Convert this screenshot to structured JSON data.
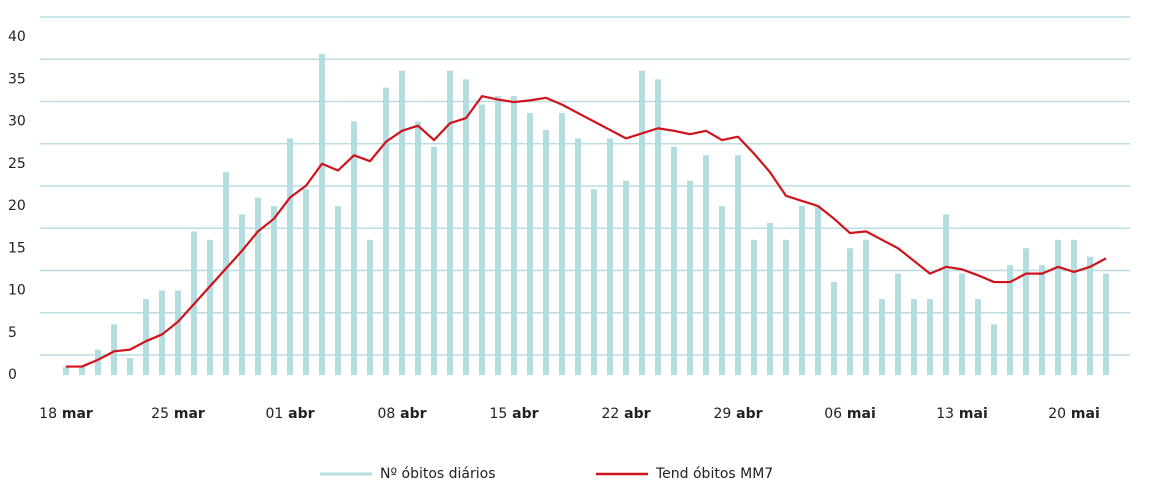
{
  "chart_data": {
    "type": "bar_line",
    "categories": [
      "18 mar",
      null,
      null,
      null,
      null,
      null,
      null,
      "25 mar",
      null,
      null,
      null,
      null,
      null,
      null,
      "01 abr",
      null,
      null,
      null,
      null,
      null,
      null,
      "08 abr",
      null,
      null,
      null,
      null,
      null,
      null,
      "15 abr",
      null,
      null,
      null,
      null,
      null,
      null,
      "22 abr",
      null,
      null,
      null,
      null,
      null,
      null,
      "29 abr",
      null,
      null,
      null,
      null,
      null,
      null,
      "06 mai",
      null,
      null,
      null,
      null,
      null,
      null,
      "13 mai",
      null,
      null,
      null,
      null,
      null,
      null,
      "20 mai",
      null,
      null
    ],
    "series": [
      {
        "name": "Nº óbitos diários",
        "color": "#b3dde0",
        "kind": "bar",
        "values": [
          1,
          1,
          3,
          6,
          2,
          9,
          10,
          10,
          17,
          16,
          24,
          19,
          21,
          20,
          28,
          22,
          38,
          20,
          30,
          16,
          34,
          36,
          30,
          27,
          36,
          35,
          32,
          33,
          33,
          31,
          29,
          31,
          28,
          22,
          28,
          23,
          36,
          35,
          27,
          23,
          26,
          20,
          26,
          16,
          18,
          16,
          20,
          20,
          11,
          15,
          16,
          9,
          12,
          9,
          9,
          19,
          12,
          9,
          6,
          13,
          15,
          13,
          16,
          16,
          14,
          12
        ]
      },
      {
        "name": "Tend óbitos MM7",
        "color": "#d0121b",
        "kind": "line",
        "values": [
          1,
          1,
          1.8,
          2.8,
          3,
          4,
          4.8,
          6.3,
          8.4,
          10.5,
          12.6,
          14.7,
          17,
          18.5,
          21,
          22.4,
          25,
          24.2,
          26,
          25.3,
          27.6,
          28.9,
          29.5,
          27.8,
          29.8,
          30.4,
          33,
          32.6,
          32.3,
          32.5,
          32.8,
          32,
          31,
          30,
          29,
          28,
          28.6,
          29.2,
          28.9,
          28.5,
          28.9,
          27.8,
          28.2,
          26.2,
          24,
          21.2,
          20.6,
          20,
          18.5,
          16.8,
          17,
          16,
          15,
          13.5,
          12,
          12.8,
          12.5,
          11.8,
          11,
          11,
          12,
          12,
          12.8,
          12.2,
          12.8,
          13.8
        ]
      }
    ],
    "ylim": [
      0,
      40
    ],
    "yticks": [
      0,
      5,
      10,
      15,
      20,
      25,
      30,
      35,
      40
    ],
    "grid": true,
    "legend": "bottom"
  }
}
